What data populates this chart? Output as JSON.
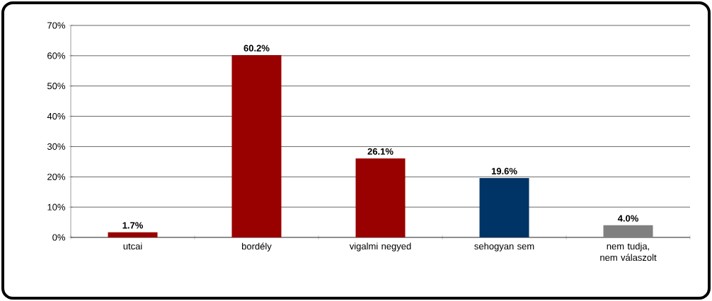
{
  "chart_data": {
    "type": "bar",
    "categories": [
      "utcai",
      "bordély",
      "vigalmi negyed",
      "sehogyan sem",
      "nem tudja, nem válaszolt"
    ],
    "values": [
      1.7,
      60.2,
      26.1,
      19.6,
      4.0
    ],
    "colors": [
      "#990000",
      "#990000",
      "#990000",
      "#003366",
      "#808080"
    ],
    "value_labels": [
      "1.7%",
      "60.2%",
      "26.1%",
      "19.6%",
      "4.0%"
    ],
    "ylim": [
      0,
      70
    ],
    "yticks": [
      {
        "value": 0,
        "label": "0%"
      },
      {
        "value": 10,
        "label": "10%"
      },
      {
        "value": 20,
        "label": "20%"
      },
      {
        "value": 30,
        "label": "30%"
      },
      {
        "value": 40,
        "label": "40%"
      },
      {
        "value": 50,
        "label": "50%"
      },
      {
        "value": 60,
        "label": "60%"
      },
      {
        "value": 70,
        "label": "70%"
      }
    ],
    "grid": "y"
  }
}
